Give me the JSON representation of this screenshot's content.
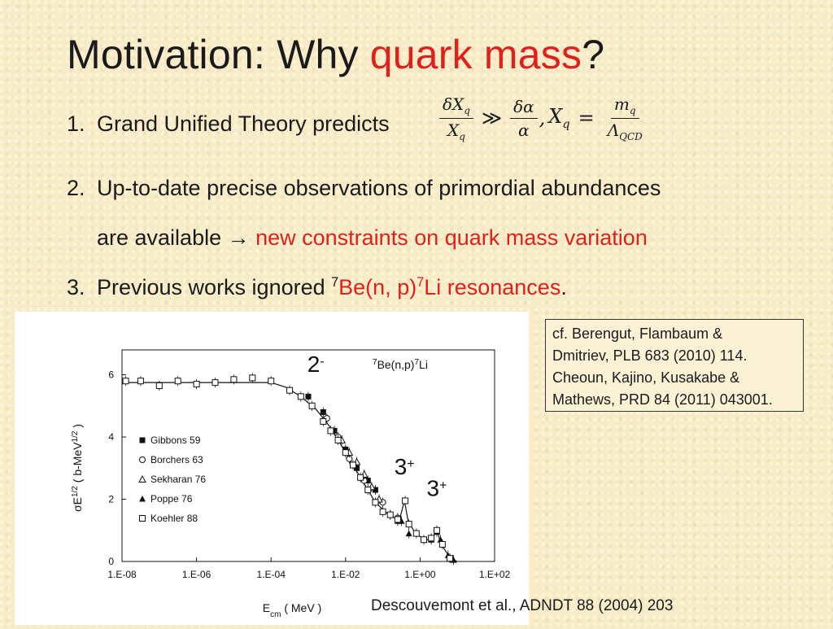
{
  "slide": {
    "title_prefix": "Motivation: Why ",
    "title_highlight": "quark mass",
    "title_suffix": "?",
    "items": [
      {
        "num": "1.",
        "text": "Grand Unified Theory predicts"
      },
      {
        "num": "2.",
        "line1": "Up-to-date precise observations of primordial abundances",
        "line2_prefix": "are available → ",
        "line2_highlight": "new constraints on quark mass variation"
      },
      {
        "num": "3.",
        "prefix": "Previous works ignored ",
        "sup1": "7",
        "mid": "Be(n, p)",
        "sup2": "7",
        "highlight": "Li resonances",
        "suffix": "."
      }
    ],
    "formula": {
      "frac1_num": "δX",
      "frac1_num_sub": "q",
      "frac1_den": "X",
      "frac1_den_sub": "q",
      "relation": "≫",
      "frac2_num": "δα",
      "frac2_den": "α",
      "comma": ",",
      "lhs": "X",
      "lhs_sub": "q",
      "equals": "=",
      "frac3_num": "m",
      "frac3_num_sub": "q",
      "frac3_den": "Λ",
      "frac3_den_sub": "QCD"
    },
    "references_box": [
      "cf. Berengut, Flambaum &",
      "Dmitriev, PLB 683 (2010) 114.",
      "Cheoun, Kajino, Kusakabe &",
      "Mathews, PRD 84 (2011) 043001."
    ],
    "figure_citation": "Descouvemont et al., ADNDT 88 (2004) 203",
    "colors": {
      "accent": "#e0201b",
      "text": "#1a1a1a",
      "background": "#f7ebc8"
    }
  },
  "chart_data": {
    "type": "scatter",
    "reaction_prefix": "7",
    "reaction_mid": "Be(n,p)",
    "reaction_sup": "7",
    "reaction_suffix": "Li",
    "xlabel_main": "E",
    "xlabel_sub": "cm",
    "xlabel_unit": " ( MeV )",
    "ylabel_main": "σE",
    "ylabel_sup1": "1/2",
    "ylabel_mid": " ( b-MeV",
    "ylabel_sup2": "1/2",
    "ylabel_end": " )",
    "x_scale": "log",
    "x_ticks": [
      {
        "value": -8,
        "label": "1.E-08"
      },
      {
        "value": -6,
        "label": "1.E-06"
      },
      {
        "value": -4,
        "label": "1.E-04"
      },
      {
        "value": -2,
        "label": "1.E-02"
      },
      {
        "value": 0,
        "label": "1.E+00"
      },
      {
        "value": 2,
        "label": "1.E+02"
      }
    ],
    "y_ticks": [
      0,
      2,
      4,
      6
    ],
    "xlim_log10": [
      -8,
      2
    ],
    "ylim": [
      0,
      6.8
    ],
    "legend_position": "left",
    "series": [
      {
        "name": "Gibbons 59",
        "marker": "filled-square",
        "points": [
          [
            -3.0,
            5.3
          ],
          [
            -2.6,
            4.8
          ],
          [
            -2.3,
            4.2
          ],
          [
            -2.0,
            3.6
          ],
          [
            -1.7,
            3.0
          ],
          [
            -1.4,
            2.6
          ],
          [
            -1.2,
            2.3
          ]
        ]
      },
      {
        "name": "Borchers 63",
        "marker": "open-circle",
        "points": [
          [
            -2.5,
            4.6
          ],
          [
            -2.2,
            4.0
          ],
          [
            -1.9,
            3.3
          ],
          [
            -1.5,
            2.6
          ],
          [
            -1.0,
            1.9
          ],
          [
            -0.6,
            1.4
          ]
        ]
      },
      {
        "name": "Sekharan 76",
        "marker": "open-triangle",
        "points": [
          [
            -2.1,
            3.9
          ],
          [
            -1.9,
            3.5
          ],
          [
            -1.7,
            3.2
          ],
          [
            -1.5,
            2.8
          ],
          [
            -1.3,
            2.4
          ],
          [
            -1.1,
            2.0
          ]
        ]
      },
      {
        "name": "Poppe 76",
        "marker": "filled-triangle",
        "points": [
          [
            -0.8,
            1.5
          ],
          [
            -0.6,
            1.3
          ],
          [
            -0.5,
            1.3
          ],
          [
            -0.3,
            0.9
          ],
          [
            0.3,
            0.7
          ],
          [
            0.45,
            0.95
          ],
          [
            0.55,
            0.7
          ],
          [
            0.75,
            0.2
          ],
          [
            0.9,
            0.05
          ]
        ]
      },
      {
        "name": "Koehler 88",
        "marker": "open-square",
        "points": [
          [
            -7.9,
            5.8
          ],
          [
            -7.5,
            5.8
          ],
          [
            -7.0,
            5.65
          ],
          [
            -6.5,
            5.8
          ],
          [
            -6.0,
            5.7
          ],
          [
            -5.5,
            5.75
          ],
          [
            -5.0,
            5.85
          ],
          [
            -4.5,
            5.9
          ],
          [
            -4.0,
            5.8
          ],
          [
            -3.5,
            5.5
          ],
          [
            -3.2,
            5.3
          ],
          [
            -2.9,
            5.0
          ],
          [
            -2.6,
            4.5
          ],
          [
            -2.4,
            4.2
          ],
          [
            -2.2,
            3.9
          ],
          [
            -2.0,
            3.5
          ],
          [
            -1.8,
            3.1
          ],
          [
            -1.6,
            2.7
          ],
          [
            -1.4,
            2.3
          ],
          [
            -1.2,
            1.9
          ],
          [
            -1.0,
            1.6
          ],
          [
            -0.8,
            1.5
          ],
          [
            -0.6,
            1.35
          ],
          [
            -0.4,
            1.95
          ],
          [
            -0.3,
            1.2
          ],
          [
            -0.1,
            0.9
          ],
          [
            0.1,
            0.7
          ],
          [
            0.3,
            0.75
          ],
          [
            0.45,
            1.0
          ],
          [
            0.6,
            0.55
          ],
          [
            0.8,
            0.1
          ]
        ]
      }
    ],
    "curve": [
      [
        -8,
        5.75
      ],
      [
        -4,
        5.75
      ],
      [
        -3.6,
        5.6
      ],
      [
        -3.2,
        5.3
      ],
      [
        -2.8,
        4.9
      ],
      [
        -2.4,
        4.3
      ],
      [
        -2.0,
        3.5
      ],
      [
        -1.6,
        2.7
      ],
      [
        -1.2,
        1.9
      ],
      [
        -0.8,
        1.45
      ],
      [
        -0.55,
        1.35
      ],
      [
        -0.42,
        1.95
      ],
      [
        -0.32,
        1.3
      ],
      [
        -0.1,
        0.85
      ],
      [
        0.2,
        0.7
      ],
      [
        0.35,
        0.75
      ],
      [
        0.45,
        1.05
      ],
      [
        0.55,
        0.6
      ],
      [
        0.7,
        0.3
      ],
      [
        0.9,
        0.05
      ],
      [
        1.0,
        0.0
      ]
    ],
    "annotations": [
      {
        "main": "2",
        "sup": "-",
        "at_log10E": -2.8,
        "at_y": 6.1
      },
      {
        "main": "3",
        "sup": "+",
        "at_log10E": -0.42,
        "at_y": 2.8
      },
      {
        "main": "3",
        "sup": "+",
        "at_log10E": 0.45,
        "at_y": 2.1
      }
    ]
  }
}
